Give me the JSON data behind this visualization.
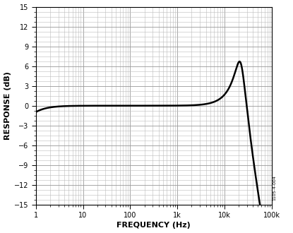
{
  "title": "",
  "xlabel": "FREQUENCY (Hz)",
  "ylabel": "RESPONSE (dB)",
  "xlim": [
    1,
    100000
  ],
  "ylim": [
    -15,
    15
  ],
  "yticks": [
    -15,
    -12,
    -9,
    -6,
    -3,
    0,
    3,
    6,
    9,
    12,
    15
  ],
  "background_color": "#ffffff",
  "line_color": "#000000",
  "line_width": 1.8,
  "annotation": "1105-4-004",
  "curve_f0": 22000,
  "curve_Q": 2.1,
  "curve_f_hp": 0.5,
  "major_grid_color": "#999999",
  "minor_grid_color": "#bbbbbb",
  "major_grid_lw": 0.6,
  "minor_grid_lw": 0.4
}
